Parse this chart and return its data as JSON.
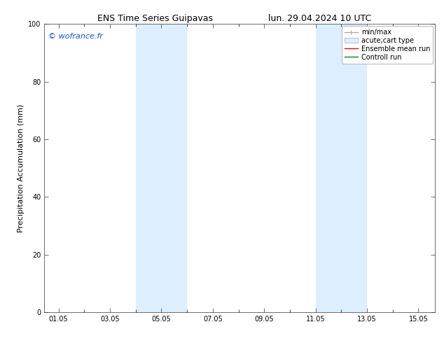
{
  "title_left": "ENS Time Series Guipavas",
  "title_right": "lun. 29.04.2024 10 UTC",
  "ylabel": "Precipitation Accumulation (mm)",
  "watermark": "© wofrance.fr",
  "watermark_color": "#1155cc",
  "ylim": [
    0,
    100
  ],
  "xlim_start": 0.5,
  "xlim_end": 15.7,
  "xticks": [
    1.05,
    3.05,
    5.05,
    7.05,
    9.05,
    11.05,
    13.05,
    15.05
  ],
  "xtick_labels": [
    "01.05",
    "03.05",
    "05.05",
    "07.05",
    "09.05",
    "11.05",
    "13.05",
    "15.05"
  ],
  "yticks": [
    0,
    20,
    40,
    60,
    80,
    100
  ],
  "shaded_bands": [
    {
      "xmin": 4.05,
      "xmax": 5.05
    },
    {
      "xmin": 5.05,
      "xmax": 6.05
    },
    {
      "xmin": 11.05,
      "xmax": 12.05
    },
    {
      "xmin": 12.05,
      "xmax": 13.05
    }
  ],
  "band_color": "#ddeeff",
  "band_alpha": 1.0,
  "legend_labels": [
    "min/max",
    "acute;cart type",
    "Ensemble mean run",
    "Controll run"
  ],
  "legend_line_colors": [
    "#aaaaaa",
    "#ddeeff",
    "#ff0000",
    "#008800"
  ],
  "background_color": "#ffffff",
  "font_size_title": 9,
  "font_size_axis": 8,
  "font_size_ticks": 7,
  "font_size_legend": 7,
  "font_size_watermark": 8
}
